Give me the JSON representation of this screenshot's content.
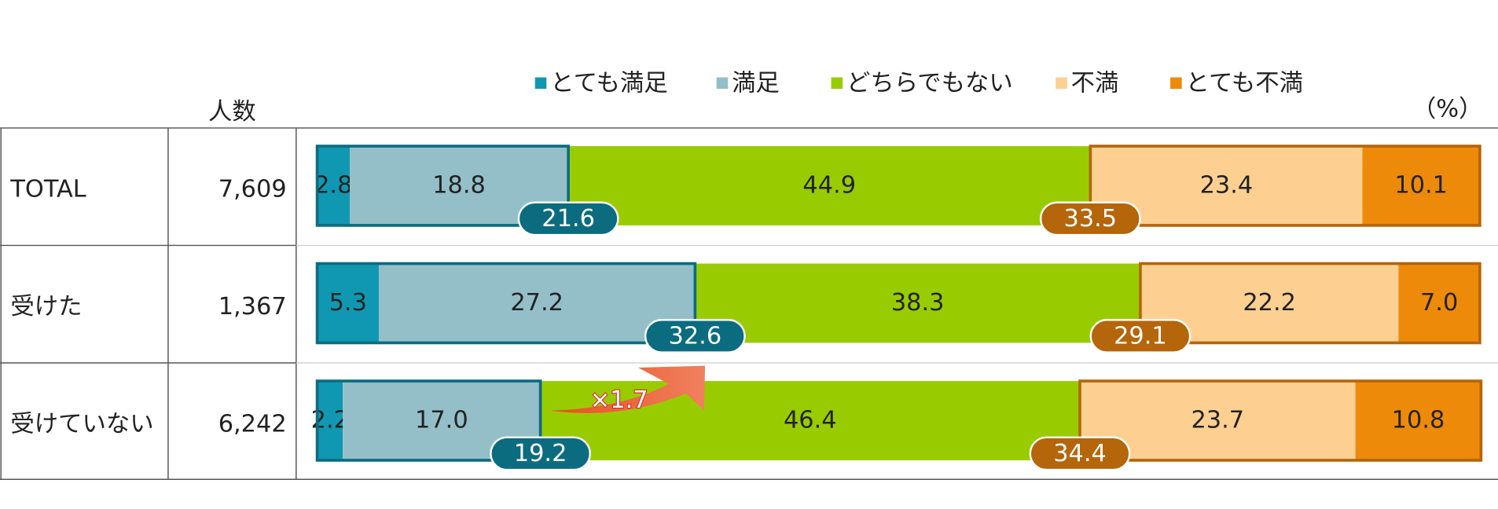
{
  "chart_data": {
    "type": "bar",
    "orientation": "horizontal",
    "stacked": true,
    "categories": [
      "TOTAL",
      "受けた",
      "受けていない"
    ],
    "count_header": "人数",
    "counts": [
      7609,
      1367,
      6242
    ],
    "count_labels": [
      "7,609",
      "1,367",
      "6,242"
    ],
    "unit_label": "（%）",
    "xlim": [
      0,
      100
    ],
    "series": [
      {
        "name": "とても満足",
        "color": "#1098b3",
        "values": [
          2.8,
          5.3,
          2.2
        ],
        "value_labels": [
          "2.8",
          "5.3",
          "2.2"
        ]
      },
      {
        "name": "満足",
        "color": "#94bfc9",
        "values": [
          18.8,
          27.2,
          17.0
        ],
        "value_labels": [
          "18.8",
          "27.2",
          "17.0"
        ]
      },
      {
        "name": "どちらでもない",
        "color": "#99cc00",
        "values": [
          44.9,
          38.3,
          46.4
        ],
        "value_labels": [
          "44.9",
          "38.3",
          "46.4"
        ]
      },
      {
        "name": "不満",
        "color": "#fdd092",
        "values": [
          23.4,
          22.2,
          23.7
        ],
        "value_labels": [
          "23.4",
          "22.2",
          "23.7"
        ]
      },
      {
        "name": "とても不満",
        "color": "#ee8a0a",
        "values": [
          10.1,
          7.0,
          10.8
        ],
        "value_labels": [
          "10.1",
          "7.0",
          "10.8"
        ]
      }
    ],
    "satisfied_totals": {
      "color": "#0b6c80",
      "values": [
        21.6,
        32.6,
        19.2
      ],
      "value_labels": [
        "21.6",
        "32.6",
        "19.2"
      ]
    },
    "dissatisfied_totals": {
      "color": "#b5650a",
      "values": [
        33.5,
        29.1,
        34.4
      ],
      "value_labels": [
        "33.5",
        "29.1",
        "34.4"
      ]
    },
    "annotation": "×1.7"
  }
}
